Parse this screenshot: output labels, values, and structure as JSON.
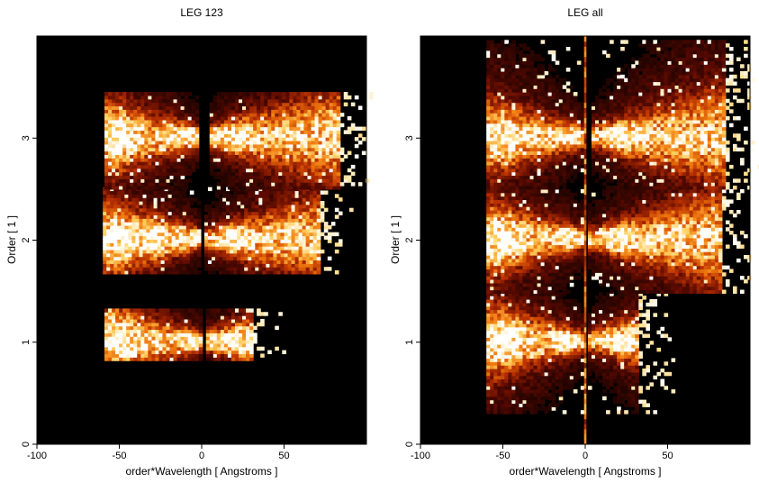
{
  "chart_data": [
    {
      "type": "heatmap",
      "title": "LEG 123",
      "xlabel": "order*Wavelength [ Angstroms ]",
      "ylabel": "Order [ 1 ]",
      "xlim": [
        -100,
        100
      ],
      "ylim": [
        0,
        4
      ],
      "xticks": [
        -100,
        -50,
        0,
        50
      ],
      "yticks": [
        0,
        1,
        2,
        3
      ],
      "colormap": [
        "#000000",
        "#5a0a00",
        "#b83000",
        "#f07a10",
        "#ffd060",
        "#ffffff"
      ],
      "bands": [
        {
          "order": 1,
          "y_range": [
            0.82,
            1.32
          ],
          "x_range": [
            -59,
            30
          ],
          "peaks": [
            -50,
            -3,
            20
          ],
          "center_gap": [
            -1,
            1
          ]
        },
        {
          "order": 2,
          "y_range": [
            1.67,
            2.5
          ],
          "x_range": [
            -60,
            70
          ],
          "peaks": [
            -50,
            -28,
            -8,
            18
          ],
          "center_gap": [
            -2,
            1
          ]
        },
        {
          "order": 3,
          "y_range": [
            2.5,
            3.45
          ],
          "x_range": [
            -59,
            82
          ],
          "peaks": [
            -50,
            -10,
            20
          ],
          "center_gap": [
            -2,
            3
          ]
        }
      ]
    },
    {
      "type": "heatmap",
      "title": "LEG all",
      "xlabel": "order*Wavelength [ Angstroms ]",
      "ylabel": "Order [ 1 ]",
      "xlim": [
        -100,
        100
      ],
      "ylim": [
        0,
        4
      ],
      "xticks": [
        -100,
        -50,
        0,
        50
      ],
      "yticks": [
        0,
        1,
        2,
        3
      ],
      "colormap": [
        "#000000",
        "#5a0a00",
        "#b83000",
        "#f07a10",
        "#ffd060",
        "#ffffff"
      ],
      "bands": [
        {
          "order": 1,
          "y_range": [
            0.3,
            1.48
          ],
          "x_range": [
            -60,
            32
          ],
          "peaks": [
            -50,
            -10,
            18
          ],
          "center_gap": [
            -1,
            1
          ]
        },
        {
          "order": 2,
          "y_range": [
            1.48,
            2.5
          ],
          "x_range": [
            -60,
            82
          ],
          "peaks": [
            -50,
            -8,
            18
          ],
          "center_gap": [
            -2,
            1
          ]
        },
        {
          "order": 3,
          "y_range": [
            2.5,
            3.95
          ],
          "x_range": [
            -60,
            85
          ],
          "peaks": [
            -50,
            -10,
            20
          ],
          "center_gap": [
            -2,
            3
          ]
        }
      ]
    }
  ]
}
